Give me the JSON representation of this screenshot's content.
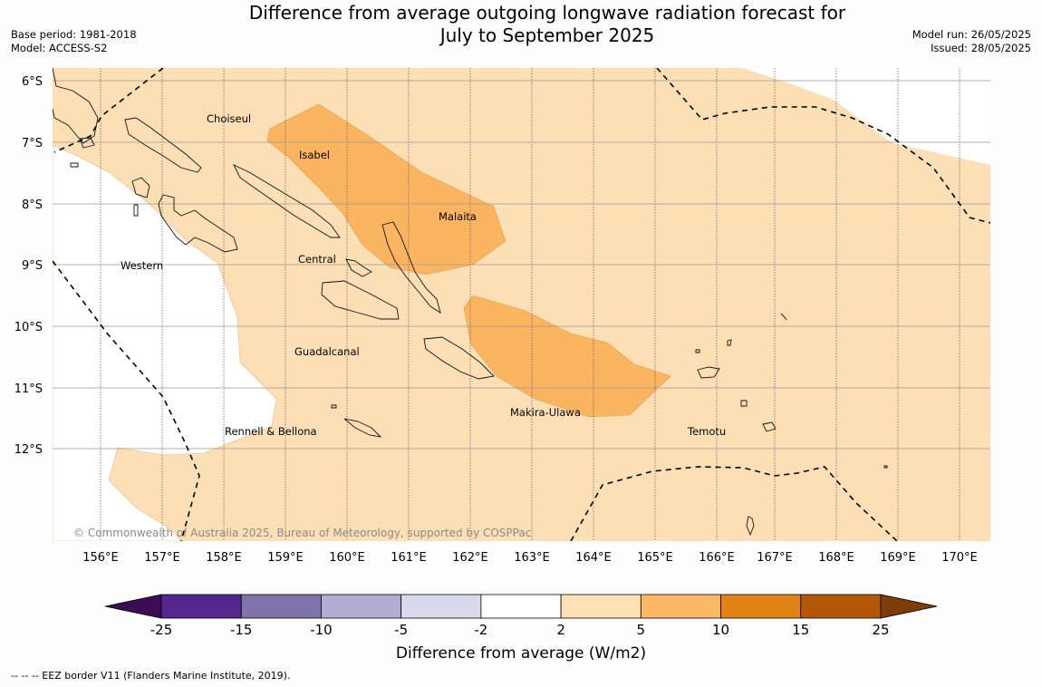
{
  "header": {
    "title_line1": "Difference from average outgoing longwave radiation forecast for",
    "title_line2": "July to September 2025",
    "base_period": "Base period: 1981-2018",
    "model": "Model: ACCESS-S2",
    "model_run": "Model run: 26/05/2025",
    "issued": "Issued: 28/05/2025"
  },
  "map": {
    "lat_labels": [
      "6°S",
      "7°S",
      "8°S",
      "9°S",
      "10°S",
      "11°S",
      "12°S"
    ],
    "lon_labels": [
      "156°E",
      "157°E",
      "158°E",
      "159°E",
      "160°E",
      "161°E",
      "162°E",
      "163°E",
      "164°E",
      "165°E",
      "166°E",
      "167°E",
      "168°E",
      "169°E",
      "170°E"
    ],
    "regions": {
      "choiseul": "Choiseul",
      "isabel": "Isabel",
      "malaita": "Malaita",
      "western": "Western",
      "central": "Central",
      "guadalcanal": "Guadalcanal",
      "makira_ulawa": "Makira-Ulawa",
      "rennell_bellona": "Rennell & Bellona",
      "temotu": "Temotu"
    },
    "copyright": "© Commonwealth of Australia 2025, Bureau of Meteorology, supported by COSPPac",
    "anomaly_classes_present": [
      "2 to 5",
      "5 to 10"
    ],
    "colors": {
      "class_2_5": "#fddfb6",
      "class_5_10": "#fbb460",
      "no_change": "#ffffff"
    }
  },
  "colorbar": {
    "ticks": [
      "-25",
      "-15",
      "-10",
      "-5",
      "-2",
      "2",
      "5",
      "10",
      "15",
      "25"
    ],
    "colors": [
      "#3a0d55",
      "#54278f",
      "#8073ac",
      "#b2abd2",
      "#d8daeb",
      "#ffffff",
      "#fee0b6",
      "#fdb863",
      "#e08214",
      "#b35806",
      "#7f3b08"
    ],
    "label": "Difference from average (W/m2)"
  },
  "footer": {
    "eez_note": "--  --  -- EEZ border V11 (Flanders Marine Institute, 2019)."
  }
}
